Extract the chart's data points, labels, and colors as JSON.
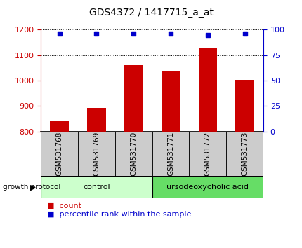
{
  "title": "GDS4372 / 1417715_a_at",
  "samples": [
    "GSM531768",
    "GSM531769",
    "GSM531770",
    "GSM531771",
    "GSM531772",
    "GSM531773"
  ],
  "count_values": [
    840,
    893,
    1062,
    1037,
    1130,
    1002
  ],
  "percentile_values": [
    96,
    96,
    96,
    96,
    95,
    96
  ],
  "ylim_left": [
    800,
    1200
  ],
  "ylim_right": [
    0,
    100
  ],
  "yticks_left": [
    800,
    900,
    1000,
    1100,
    1200
  ],
  "yticks_right": [
    0,
    25,
    50,
    75,
    100
  ],
  "bar_color": "#cc0000",
  "dot_color": "#0000cc",
  "control_color": "#ccffcc",
  "treatment_color": "#66dd66",
  "control_label": "control",
  "treatment_label": "ursodeoxycholic acid",
  "growth_protocol_label": "growth protocol",
  "legend_count": "count",
  "legend_percentile": "percentile rank within the sample",
  "axis_left_color": "#cc0000",
  "axis_right_color": "#0000cc",
  "background_color": "#ffffff",
  "tick_label_bg": "#cccccc",
  "title_fontsize": 10,
  "tick_fontsize": 8,
  "label_fontsize": 7.5
}
